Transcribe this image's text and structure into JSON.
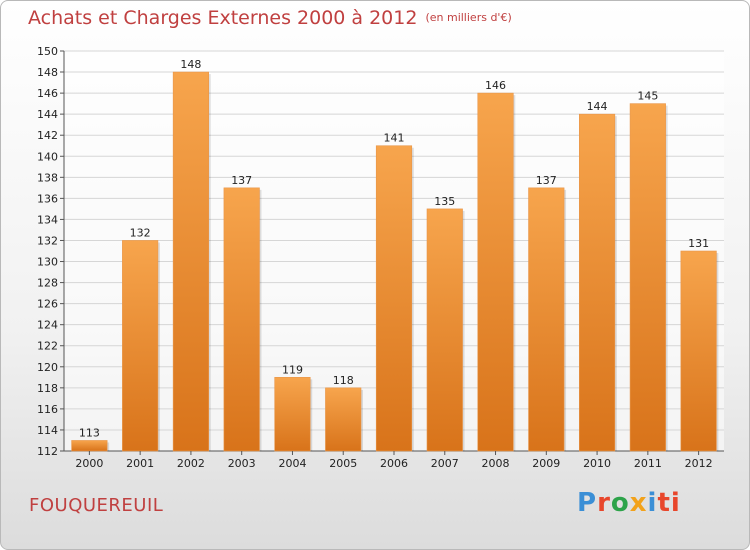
{
  "title": "Achats et Charges Externes 2000 à 2012",
  "unit": "(en milliers d'€)",
  "commune": "FOUQUEREUIL",
  "logo": "Proxiti",
  "colors": {
    "bar_top": "#f7a54d",
    "bar_bottom": "#d8731a",
    "title": "#c04040"
  },
  "chart_data": {
    "type": "bar",
    "categories": [
      "2000",
      "2001",
      "2002",
      "2003",
      "2004",
      "2005",
      "2006",
      "2007",
      "2008",
      "2009",
      "2010",
      "2011",
      "2012"
    ],
    "values": [
      113,
      132,
      148,
      137,
      119,
      118,
      141,
      135,
      146,
      137,
      144,
      145,
      131
    ],
    "ylim": [
      112,
      150
    ],
    "yticks": [
      112,
      114,
      116,
      118,
      120,
      122,
      124,
      126,
      128,
      130,
      132,
      134,
      136,
      138,
      140,
      142,
      144,
      146,
      148,
      150
    ],
    "grid": true
  }
}
